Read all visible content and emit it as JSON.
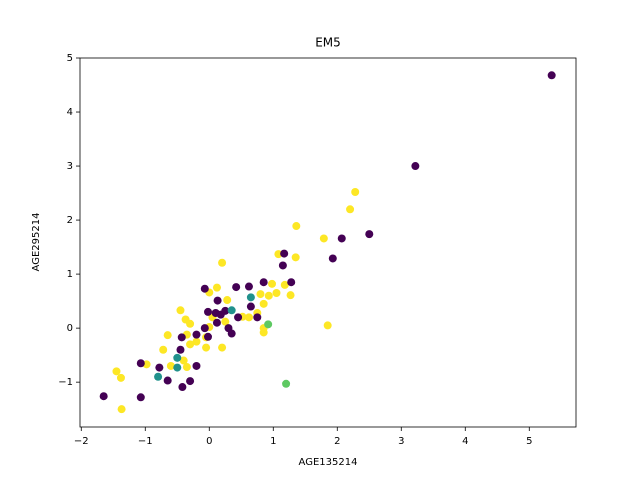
{
  "chart_data": {
    "type": "scatter",
    "title": "EM5",
    "x_label": "AGE135214",
    "y_label": "AGE295214",
    "xlim": [
      -2.02,
      5.73
    ],
    "ylim": [
      -1.83,
      5.0
    ],
    "xticks": [
      {
        "value": -2,
        "label": "−2"
      },
      {
        "value": -1,
        "label": "−1"
      },
      0,
      1,
      2,
      3,
      4,
      5
    ],
    "yticks": [
      {
        "value": -1,
        "label": "−1"
      },
      0,
      1,
      2,
      3,
      4,
      5
    ],
    "grid": false,
    "series": [
      {
        "color": "#fde725",
        "x": [
          2.28,
          2.2,
          1.36,
          1.79,
          1.08,
          1.35,
          0.2,
          0.12,
          0.0,
          -0.45,
          0.28,
          0.52,
          0.62,
          0.75,
          0.8,
          0.85,
          0.93,
          0.98,
          1.05,
          1.18,
          1.27,
          0.85,
          0.85,
          1.85,
          0.25,
          0.05,
          -0.05,
          -0.05,
          0.2,
          -0.2,
          -0.3,
          -0.35,
          -0.37,
          -0.3,
          -0.65,
          -0.72,
          -0.4,
          -0.35,
          -0.6,
          -0.98,
          -1.45,
          -1.38,
          -1.37,
          0.0
        ],
        "y": [
          2.52,
          2.2,
          1.89,
          1.66,
          1.37,
          1.31,
          1.21,
          0.75,
          0.66,
          0.33,
          0.52,
          0.21,
          0.2,
          0.28,
          0.63,
          0.45,
          0.6,
          0.82,
          0.65,
          0.8,
          0.61,
          0.0,
          -0.08,
          0.05,
          0.12,
          0.2,
          -0.17,
          -0.36,
          -0.36,
          -0.25,
          -0.3,
          -0.12,
          0.16,
          0.08,
          -0.13,
          -0.4,
          -0.6,
          -0.72,
          -0.7,
          -0.67,
          -0.8,
          -0.92,
          -1.5,
          0.02
        ]
      },
      {
        "color": "#440154",
        "x": [
          5.35,
          3.22,
          2.5,
          2.07,
          1.93,
          1.17,
          1.15,
          1.28,
          0.85,
          0.62,
          0.42,
          0.13,
          -0.07,
          -0.02,
          0.1,
          0.18,
          0.25,
          0.12,
          0.3,
          0.35,
          0.45,
          0.65,
          0.75,
          -0.07,
          -0.02,
          -0.2,
          -0.43,
          -0.45,
          -0.2,
          -0.3,
          -0.42,
          -0.65,
          -0.78,
          -1.07,
          -1.07,
          -1.65
        ],
        "y": [
          4.68,
          3.0,
          1.74,
          1.66,
          1.29,
          1.38,
          1.16,
          0.85,
          0.85,
          0.77,
          0.76,
          0.51,
          0.73,
          0.3,
          0.28,
          0.25,
          0.32,
          0.1,
          0.0,
          -0.1,
          0.2,
          0.4,
          0.2,
          0.0,
          -0.16,
          -0.12,
          -0.17,
          -0.4,
          -0.7,
          -0.98,
          -1.09,
          -0.97,
          -0.73,
          -0.65,
          -1.28,
          -1.26
        ]
      },
      {
        "color": "#21918c",
        "x": [
          -0.5,
          -0.8,
          -0.5,
          0.35,
          0.65
        ],
        "y": [
          -0.55,
          -0.9,
          -0.73,
          0.33,
          0.57
        ]
      },
      {
        "color": "#5ec962",
        "x": [
          0.92,
          1.2
        ],
        "y": [
          0.07,
          -1.03
        ]
      }
    ]
  }
}
